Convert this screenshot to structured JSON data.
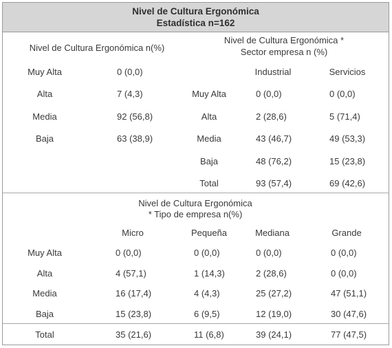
{
  "header": {
    "title": "Nivel de Cultura Ergonómica",
    "subtitle": "Estadística n=162"
  },
  "table1": {
    "title": "Nivel de Cultura Ergonómica n(%)",
    "rows": [
      {
        "label": "Muy Alta",
        "value": "0  (0,0)"
      },
      {
        "label": "Alta",
        "value": "7  (4,3)"
      },
      {
        "label": "Media",
        "value": "92 (56,8)"
      },
      {
        "label": "Baja",
        "value": "63 (38,9)"
      }
    ]
  },
  "table2": {
    "title_line1": "Nivel de Cultura Ergonómica *",
    "title_line2": "Sector empresa n (%)",
    "columns": [
      "Industrial",
      "Servicios"
    ],
    "rows": [
      {
        "label": "Muy Alta",
        "values": [
          "0  (0,0)",
          "0  (0,0)"
        ]
      },
      {
        "label": "Alta",
        "values": [
          "2  (28,6)",
          "5  (71,4)"
        ]
      },
      {
        "label": "Media",
        "values": [
          "43 (46,7)",
          "49 (53,3)"
        ]
      },
      {
        "label": "Baja",
        "values": [
          "48 (76,2)",
          "15 (23,8)"
        ]
      },
      {
        "label": "Total",
        "values": [
          "93 (57,4)",
          "69 (42,6)"
        ]
      }
    ]
  },
  "table3": {
    "title_line1": "Nivel de Cultura Ergonómica",
    "title_line2": "* Tipo de empresa n(%)",
    "columns": [
      "Micro",
      "Pequeña",
      "Mediana",
      "Grande"
    ],
    "rows": [
      {
        "label": "Muy Alta",
        "values": [
          "0  (0,0)",
          "0  (0,0)",
          "0  (0,0)",
          "0  (0,0)"
        ]
      },
      {
        "label": "Alta",
        "values": [
          "4  (57,1)",
          "1  (14,3)",
          "2  (28,6)",
          "0  (0,0)"
        ]
      },
      {
        "label": "Media",
        "values": [
          "16 (17,4)",
          "4  (4,3)",
          "25 (27,2)",
          "47 (51,1)"
        ]
      },
      {
        "label": "Baja",
        "values": [
          "15 (23,8)",
          "6  (9,5)",
          "12 (19,0)",
          "30 (47,6)"
        ]
      },
      {
        "label": "Total",
        "values": [
          "35 (21,6)",
          "11 (6,8)",
          "39 (24,1)",
          "77 (47,5)"
        ]
      }
    ]
  }
}
